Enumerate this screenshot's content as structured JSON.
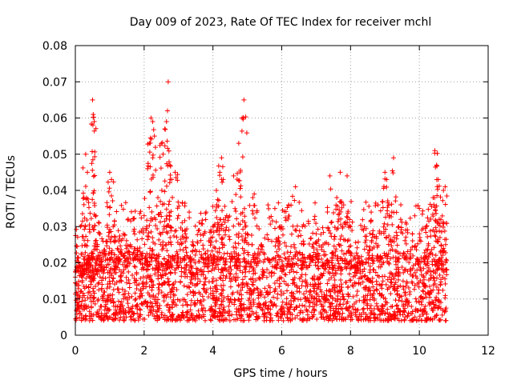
{
  "chart_data": {
    "type": "scatter",
    "title": "Day 009 of 2023, Rate Of TEC Index for receiver mchl",
    "xlabel": "GPS time / hours",
    "ylabel": "ROTI / TECUs",
    "xlim": [
      0,
      12
    ],
    "ylim": [
      0,
      0.08
    ],
    "x_ticks": [
      0,
      2,
      4,
      6,
      8,
      10,
      12
    ],
    "x_tick_labels": [
      "0",
      "2",
      "4",
      "6",
      "8",
      "10",
      "12"
    ],
    "y_ticks": [
      0,
      0.01,
      0.02,
      0.03,
      0.04,
      0.05,
      0.06,
      0.07,
      0.08
    ],
    "y_tick_labels": [
      "0",
      "0.01",
      "0.02",
      "0.03",
      "0.04",
      "0.05",
      "0.06",
      "0.07",
      "0.08"
    ],
    "grid": true,
    "marker": "+",
    "marker_color": "#ff0000",
    "data_time_range_hours": [
      0,
      10.8
    ],
    "series": [
      {
        "name": "ROTI",
        "points": [
          [
            0.05,
            0.011
          ],
          [
            0.1,
            0.02
          ],
          [
            0.15,
            0.03
          ],
          [
            0.2,
            0.016
          ],
          [
            0.25,
            0.038
          ],
          [
            0.3,
            0.05
          ],
          [
            0.35,
            0.045
          ],
          [
            0.4,
            0.022
          ],
          [
            0.45,
            0.014
          ],
          [
            0.5,
            0.065
          ],
          [
            0.52,
            0.061
          ],
          [
            0.55,
            0.059
          ],
          [
            0.6,
            0.033
          ],
          [
            0.7,
            0.028
          ],
          [
            0.8,
            0.018
          ],
          [
            0.9,
            0.026
          ],
          [
            1.0,
            0.045
          ],
          [
            1.05,
            0.043
          ],
          [
            1.1,
            0.03
          ],
          [
            1.2,
            0.021
          ],
          [
            1.4,
            0.028
          ],
          [
            1.6,
            0.025
          ],
          [
            1.8,
            0.024
          ],
          [
            2.0,
            0.033
          ],
          [
            2.1,
            0.046
          ],
          [
            2.15,
            0.053
          ],
          [
            2.2,
            0.06
          ],
          [
            2.25,
            0.059
          ],
          [
            2.3,
            0.055
          ],
          [
            2.4,
            0.038
          ],
          [
            2.5,
            0.053
          ],
          [
            2.55,
            0.05
          ],
          [
            2.6,
            0.057
          ],
          [
            2.65,
            0.059
          ],
          [
            2.68,
            0.062
          ],
          [
            2.7,
            0.07
          ],
          [
            2.75,
            0.047
          ],
          [
            2.8,
            0.043
          ],
          [
            2.9,
            0.045
          ],
          [
            3.0,
            0.033
          ],
          [
            3.2,
            0.028
          ],
          [
            3.4,
            0.025
          ],
          [
            3.6,
            0.029
          ],
          [
            3.8,
            0.034
          ],
          [
            4.0,
            0.03
          ],
          [
            4.1,
            0.04
          ],
          [
            4.2,
            0.045
          ],
          [
            4.25,
            0.049
          ],
          [
            4.3,
            0.043
          ],
          [
            4.4,
            0.033
          ],
          [
            4.6,
            0.044
          ],
          [
            4.75,
            0.053
          ],
          [
            4.85,
            0.06
          ],
          [
            4.9,
            0.065
          ],
          [
            5.0,
            0.028
          ],
          [
            5.2,
            0.039
          ],
          [
            5.4,
            0.025
          ],
          [
            5.6,
            0.036
          ],
          [
            5.8,
            0.035
          ],
          [
            6.0,
            0.03
          ],
          [
            6.2,
            0.036
          ],
          [
            6.4,
            0.041
          ],
          [
            6.6,
            0.03
          ],
          [
            6.8,
            0.022
          ],
          [
            7.0,
            0.028
          ],
          [
            7.2,
            0.025
          ],
          [
            7.4,
            0.044
          ],
          [
            7.6,
            0.038
          ],
          [
            7.7,
            0.045
          ],
          [
            7.8,
            0.036
          ],
          [
            7.9,
            0.044
          ],
          [
            8.0,
            0.03
          ],
          [
            8.2,
            0.02
          ],
          [
            8.4,
            0.03
          ],
          [
            8.6,
            0.034
          ],
          [
            8.8,
            0.036
          ],
          [
            9.0,
            0.045
          ],
          [
            9.05,
            0.043
          ],
          [
            9.2,
            0.034
          ],
          [
            9.25,
            0.049
          ],
          [
            9.4,
            0.03
          ],
          [
            9.6,
            0.029
          ],
          [
            9.8,
            0.028
          ],
          [
            10.0,
            0.035
          ],
          [
            10.2,
            0.03
          ],
          [
            10.4,
            0.038
          ],
          [
            10.45,
            0.051
          ],
          [
            10.5,
            0.047
          ],
          [
            10.55,
            0.043
          ],
          [
            10.6,
            0.027
          ],
          [
            10.7,
            0.04
          ],
          [
            10.75,
            0.041
          ],
          [
            10.8,
            0.018
          ]
        ],
        "baseline_level": 0.011,
        "baseline_spread": [
          0.004,
          0.021
        ]
      }
    ]
  }
}
